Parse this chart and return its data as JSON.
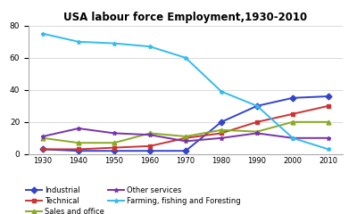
{
  "title": "USA labour force Employment,1930-2010",
  "years": [
    1930,
    1940,
    1950,
    1960,
    1970,
    1980,
    1990,
    2000,
    2010
  ],
  "series": {
    "Industrial": [
      3,
      2,
      2,
      2,
      2,
      20,
      30,
      35,
      36
    ],
    "Technical": [
      3,
      3,
      4,
      5,
      10,
      13,
      20,
      25,
      30
    ],
    "Sales and office": [
      10,
      7,
      7,
      13,
      11,
      15,
      14,
      20,
      20
    ],
    "Other services": [
      11,
      16,
      13,
      12,
      8,
      10,
      13,
      10,
      10
    ],
    "Farming, fishing and Foresting": [
      75,
      70,
      69,
      67,
      60,
      39,
      30,
      10,
      3
    ]
  },
  "colors": {
    "Industrial": "#3344CC",
    "Technical": "#CC3333",
    "Sales and office": "#88AA22",
    "Other services": "#7733AA",
    "Farming, fishing and Foresting": "#33BBEE"
  },
  "markers": {
    "Industrial": "D",
    "Technical": "s",
    "Sales and office": "^",
    "Other services": "*",
    "Farming, fishing and Foresting": "*"
  },
  "ylim": [
    0,
    80
  ],
  "yticks": [
    0,
    20,
    40,
    60,
    80
  ],
  "background_color": "#ffffff",
  "legend_order": [
    "Industrial",
    "Technical",
    "Sales and office",
    "Other services",
    "Farming, fishing and Foresting"
  ]
}
